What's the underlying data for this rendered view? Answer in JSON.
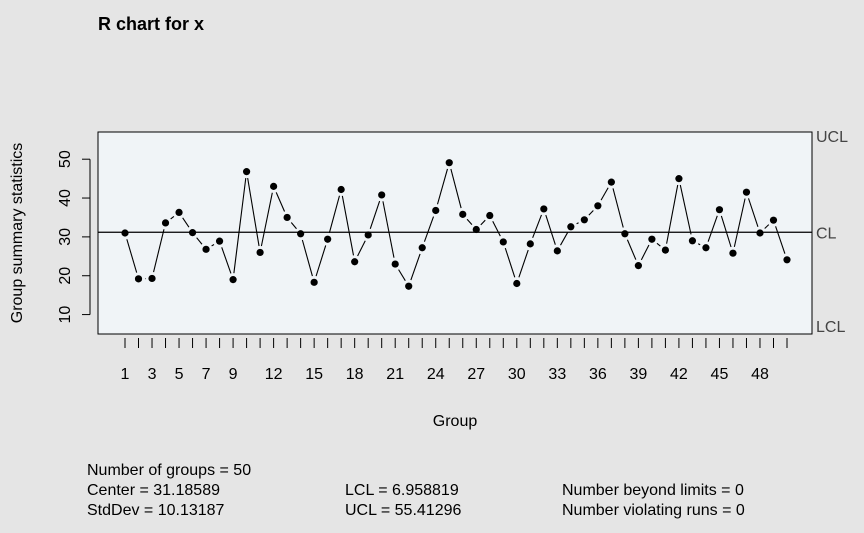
{
  "chart_data": {
    "type": "line",
    "title": "R chart for x",
    "xlabel": "Group",
    "ylabel": "Group summary statistics",
    "x_ticks": [
      "1",
      "3",
      "5",
      "7",
      "9",
      "12",
      "15",
      "18",
      "21",
      "24",
      "27",
      "30",
      "33",
      "36",
      "39",
      "42",
      "45",
      "48"
    ],
    "y_ticks": [
      "10",
      "20",
      "30",
      "40",
      "50"
    ],
    "xlim": [
      1,
      50
    ],
    "ylim": [
      5,
      57
    ],
    "x": [
      1,
      2,
      3,
      4,
      5,
      6,
      7,
      8,
      9,
      10,
      11,
      12,
      13,
      14,
      15,
      16,
      17,
      18,
      19,
      20,
      21,
      22,
      23,
      24,
      25,
      26,
      27,
      28,
      29,
      30,
      31,
      32,
      33,
      34,
      35,
      36,
      37,
      38,
      39,
      40,
      41,
      42,
      43,
      44,
      45,
      46,
      47,
      48,
      49,
      50
    ],
    "values": [
      31,
      19.2,
      19.3,
      33.6,
      36.3,
      31.1,
      26.8,
      28.9,
      19,
      46.8,
      26,
      43,
      35,
      30.8,
      18.3,
      29.4,
      42.2,
      23.6,
      30.5,
      40.8,
      23,
      17.3,
      27.2,
      36.8,
      49.1,
      35.8,
      31.9,
      35.5,
      28.7,
      18,
      28.2,
      37.2,
      26.4,
      32.6,
      34.4,
      38,
      44.1,
      30.8,
      22.6,
      29.4,
      26.6,
      45,
      29,
      27.2,
      37,
      25.8,
      41.5,
      31,
      34.3,
      24.1
    ],
    "center": 31.18589,
    "lcl": 6.958819,
    "ucl": 55.41296,
    "limit_labels": {
      "ucl": "UCL",
      "cl": "CL",
      "lcl": "LCL"
    },
    "colors": {
      "background": "#e5e5e5",
      "plot_bg": "#f0f4f7",
      "line": "#000000"
    }
  },
  "stats": {
    "groups": "Number of groups = 50",
    "center": "Center = 31.18589",
    "stddev": "StdDev = 10.13187",
    "lcl": "LCL = 6.958819",
    "ucl": "UCL = 55.41296",
    "beyond": "Number beyond limits = 0",
    "violating": "Number violating runs = 0"
  }
}
